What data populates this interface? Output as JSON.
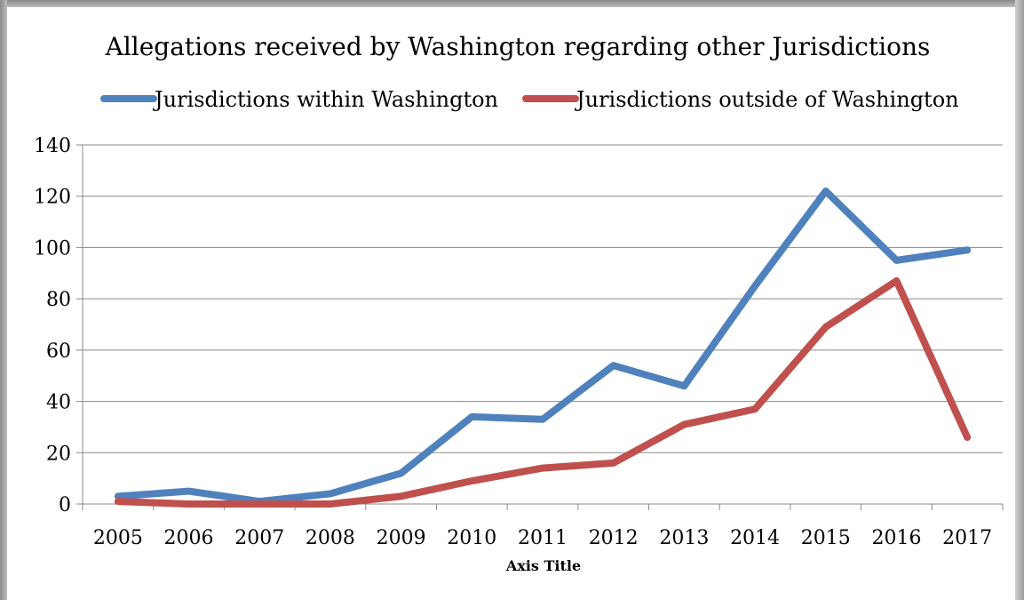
{
  "chart_data": {
    "type": "line",
    "title": "Allegations received by Washington regarding other Jurisdictions",
    "xlabel": "Axis Title",
    "ylabel": "",
    "categories": [
      "2005",
      "2006",
      "2007",
      "2008",
      "2009",
      "2010",
      "2011",
      "2012",
      "2013",
      "2014",
      "2015",
      "2016",
      "2017"
    ],
    "ylim": [
      0,
      140
    ],
    "yticks": [
      0,
      20,
      40,
      60,
      80,
      100,
      120,
      140
    ],
    "grid": true,
    "legend_position": "top",
    "series": [
      {
        "name": "Jurisdictions within Washington",
        "color": "#4f81bd",
        "values": [
          3,
          5,
          1,
          4,
          12,
          34,
          33,
          54,
          46,
          85,
          122,
          95,
          99
        ]
      },
      {
        "name": "Jurisdictions outside of Washington",
        "color": "#c0504d",
        "values": [
          1,
          0,
          0,
          0,
          3,
          9,
          14,
          16,
          31,
          37,
          69,
          87,
          26
        ]
      }
    ]
  }
}
